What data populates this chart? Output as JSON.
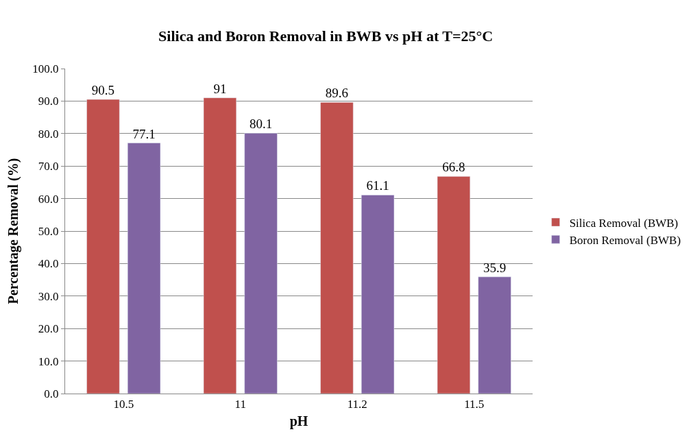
{
  "chart_data": {
    "type": "bar",
    "title": "Silica and Boron Removal in BWB vs pH at T=25°C",
    "xlabel": "pH",
    "ylabel": "Percentage Removal (%)",
    "categories": [
      "10.5",
      "11",
      "11.2",
      "11.5"
    ],
    "series": [
      {
        "name": "Silica Removal (BWB)",
        "color": "#c0504d",
        "values": [
          90.5,
          91,
          89.6,
          66.8
        ]
      },
      {
        "name": "Boron Removal (BWB)",
        "color": "#8064a2",
        "values": [
          77.1,
          80.1,
          61.1,
          35.9
        ]
      }
    ],
    "ylim": [
      0,
      100
    ],
    "yticks": [
      {
        "value": 0,
        "label": "0.0"
      },
      {
        "value": 10,
        "label": "10.0"
      },
      {
        "value": 20,
        "label": "20.0"
      },
      {
        "value": 30,
        "label": "30.0"
      },
      {
        "value": 40,
        "label": "40.0"
      },
      {
        "value": 50,
        "label": "50.0"
      },
      {
        "value": 60,
        "label": "60.0"
      },
      {
        "value": 70,
        "label": "70.0"
      },
      {
        "value": 80,
        "label": "80.0"
      },
      {
        "value": 90,
        "label": "90.0"
      },
      {
        "value": 100,
        "label": "100.0"
      }
    ],
    "grid": "y",
    "legend": "right",
    "data_labels": true
  }
}
